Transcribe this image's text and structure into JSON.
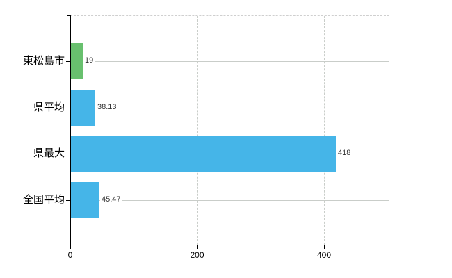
{
  "chart": {
    "background": "#ffffff",
    "axis_color": "#000000",
    "grid_color": "#c9cdc9",
    "value_label_color": "#333333",
    "category_label_color": "#000000"
  },
  "chart_data": {
    "type": "bar",
    "orientation": "horizontal",
    "title": "",
    "xlabel": "",
    "ylabel": "",
    "categories": [
      "東松島市",
      "県平均",
      "県最大",
      "全国平均"
    ],
    "values": [
      19,
      38.13,
      418,
      45.47
    ],
    "value_labels": [
      "19",
      "38.13",
      "418",
      "45.47"
    ],
    "bar_colors": [
      "#68c06e",
      "#45b5e8",
      "#45b5e8",
      "#45b5e8"
    ],
    "xlim": [
      0,
      503
    ],
    "xticks": [
      0,
      200,
      400
    ],
    "xtick_labels": [
      "0",
      "200",
      "400"
    ],
    "grid": true,
    "legend": false
  }
}
